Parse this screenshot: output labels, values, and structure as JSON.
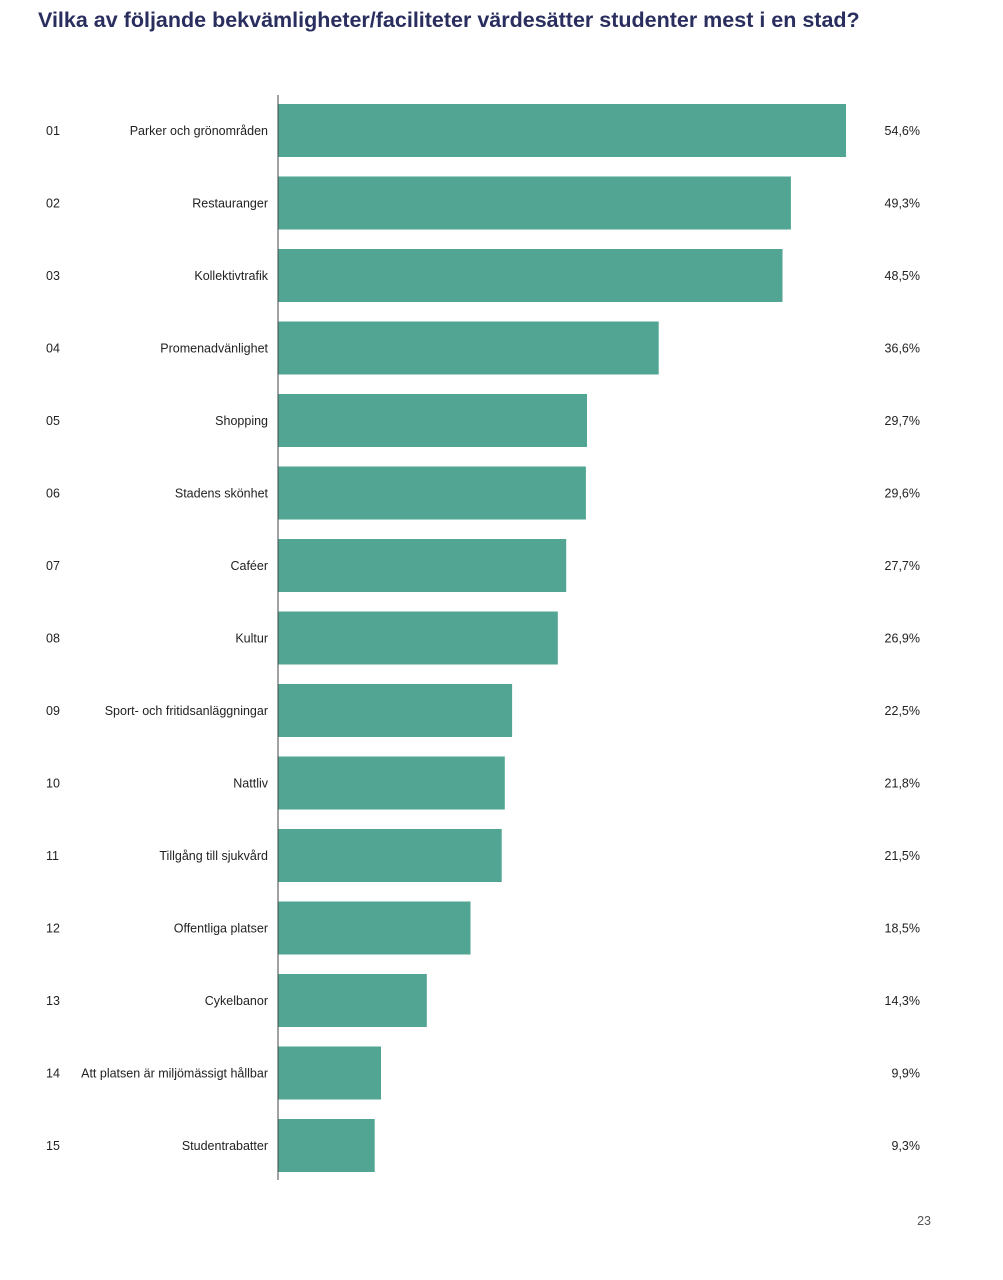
{
  "page": {
    "title": "Vilka av följande bekvämligheter/faciliteter värdesätter studenter mest i en stad?",
    "page_number": "23"
  },
  "colors": {
    "bar": "#52a592",
    "title": "#2a2e5f",
    "axis": "#444444"
  },
  "chart_data": {
    "type": "bar",
    "orientation": "horizontal",
    "title": "Vilka av följande bekvämligheter/faciliteter värdesätter studenter mest i en stad?",
    "ranks": [
      "01",
      "02",
      "03",
      "04",
      "05",
      "06",
      "07",
      "08",
      "09",
      "10",
      "11",
      "12",
      "13",
      "14",
      "15"
    ],
    "categories": [
      "Parker och grönområden",
      "Restauranger",
      "Kollektivtrafik",
      "Promenadvänlighet",
      "Shopping",
      "Stadens skönhet",
      "Caféer",
      "Kultur",
      "Sport- och fritidsanläggningar",
      "Nattliv",
      "Tillgång till sjukvård",
      "Offentliga platser",
      "Cykelbanor",
      "Att platsen är miljömässigt hållbar",
      "Studentrabatter"
    ],
    "values": [
      54.6,
      49.3,
      48.5,
      36.6,
      29.7,
      29.6,
      27.7,
      26.9,
      22.5,
      21.8,
      21.5,
      18.5,
      14.3,
      9.9,
      9.3
    ],
    "value_labels": [
      "54,6%",
      "49,3%",
      "48,5%",
      "36,6%",
      "29,7%",
      "29,6%",
      "27,7%",
      "26,9%",
      "22,5%",
      "21,8%",
      "21,5%",
      "18,5%",
      "14,3%",
      "9,9%",
      "9,3%"
    ],
    "unit": "%",
    "grid": false,
    "legend": "none"
  }
}
